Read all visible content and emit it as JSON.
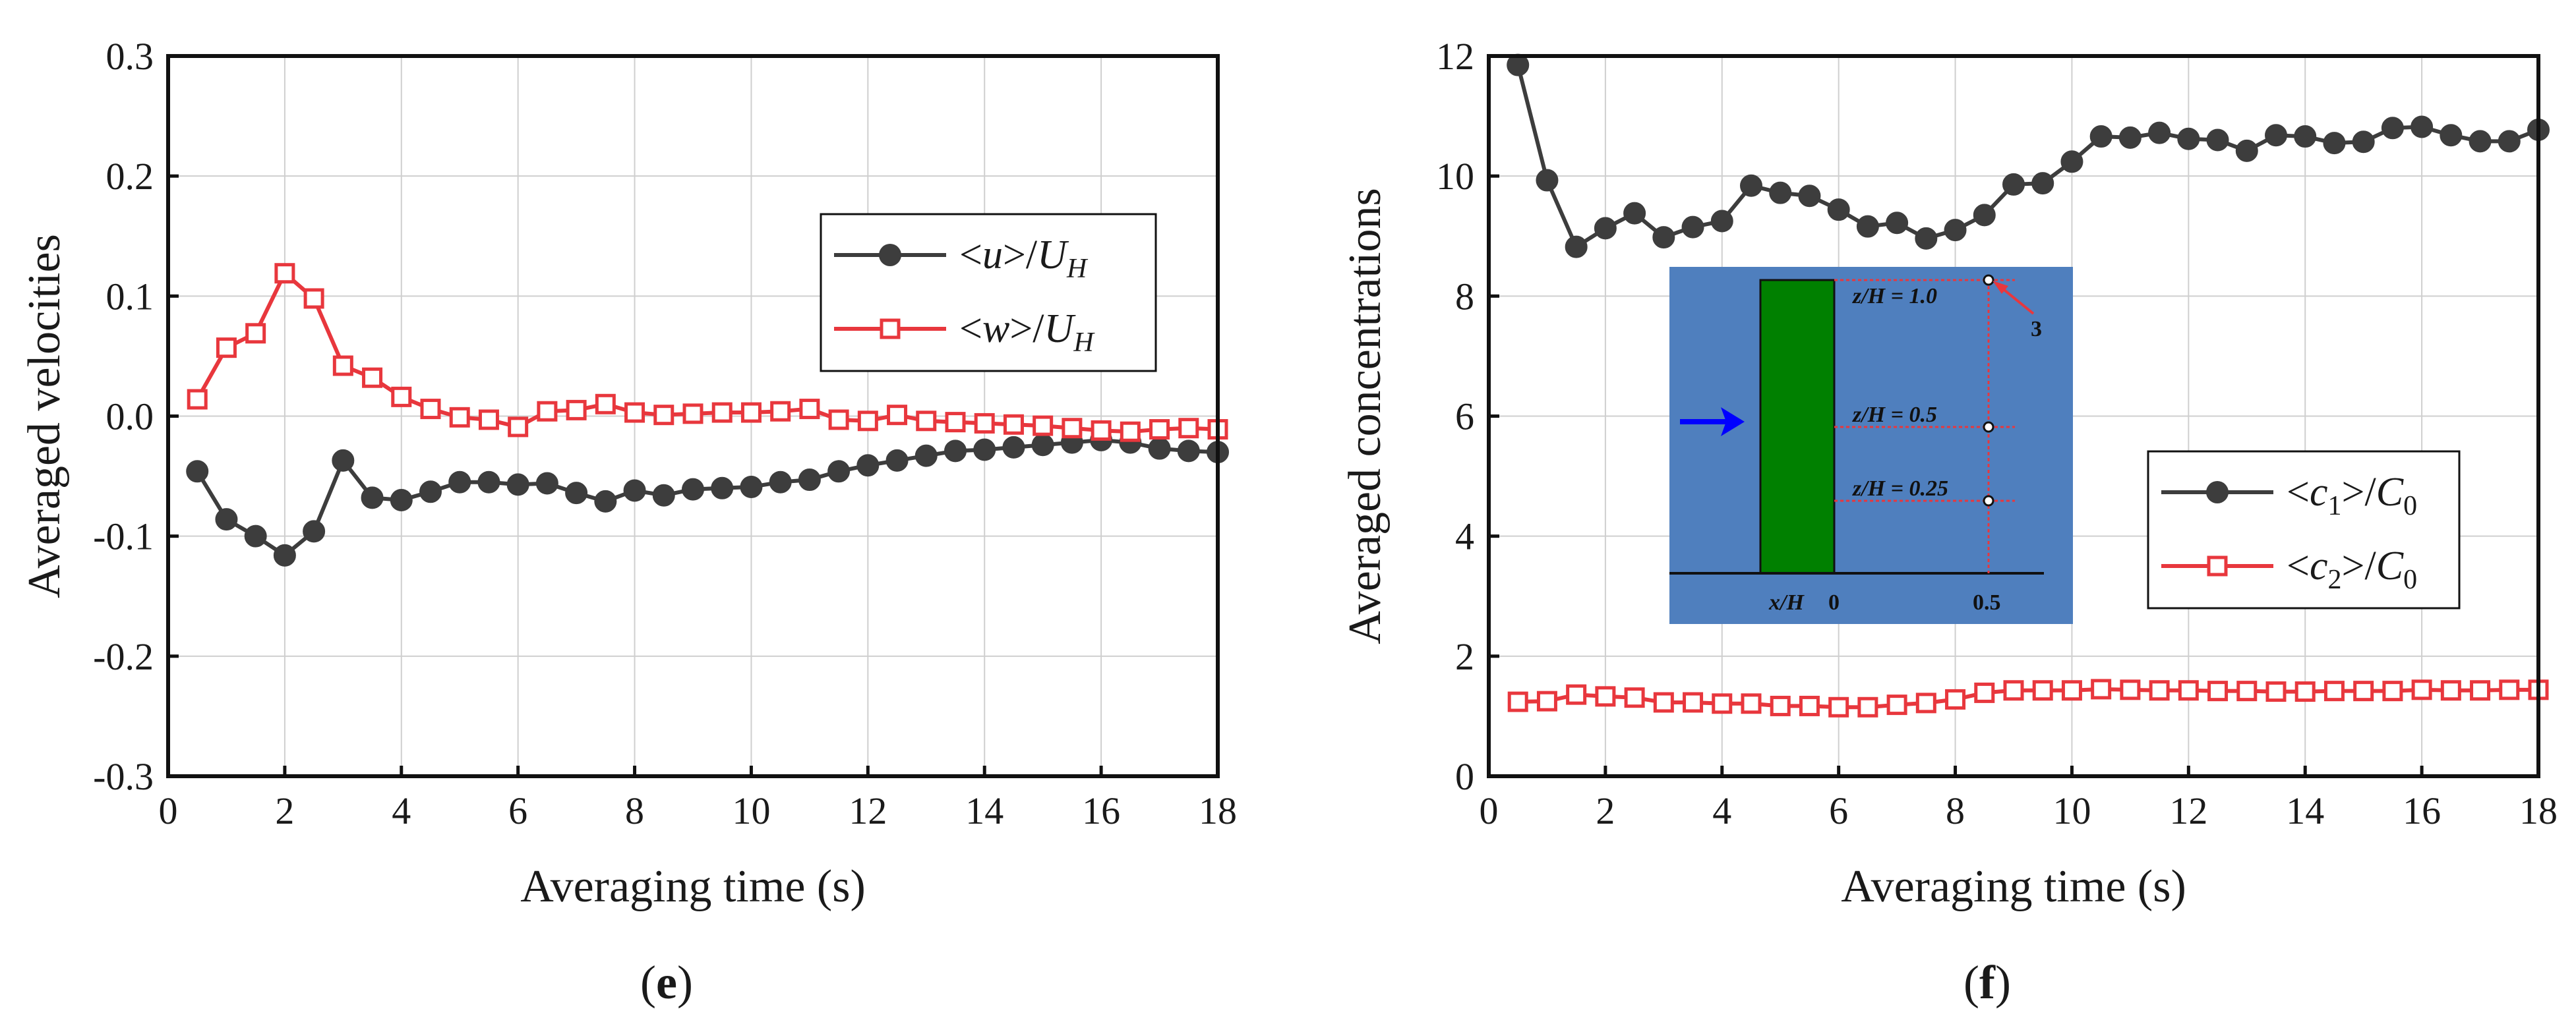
{
  "chart_data": [
    {
      "id": "e",
      "type": "line",
      "panel_label": "(e)",
      "panel_letter": "e",
      "xlabel": "Averaging time (s)",
      "ylabel": "Averaged velocities",
      "xlim": [
        0,
        18
      ],
      "ylim": [
        -0.3,
        0.3
      ],
      "xticks": [
        0,
        2,
        4,
        6,
        8,
        10,
        12,
        14,
        16,
        18
      ],
      "yticks": [
        -0.3,
        -0.2,
        -0.1,
        0.0,
        0.1,
        0.2,
        0.3
      ],
      "ytick_labels": [
        "-0.3",
        "-0.2",
        "-0.1",
        "0.0",
        "0.1",
        "0.2",
        "0.3"
      ],
      "grid": true,
      "legend_position": "center-right",
      "series": [
        {
          "name": "<u>/U_H",
          "legend_parts": [
            "<",
            "u",
            ">/",
            "U",
            "H"
          ],
          "color": "#3d3d3d",
          "marker": "circle",
          "x": [
            0.5,
            1,
            1.5,
            2,
            2.5,
            3,
            3.5,
            4,
            4.5,
            5,
            5.5,
            6,
            6.5,
            7,
            7.5,
            8,
            8.5,
            9,
            9.5,
            10,
            10.5,
            11,
            11.5,
            12,
            12.5,
            13,
            13.5,
            14,
            14.5,
            15,
            15.5,
            16,
            16.5,
            17,
            17.5,
            18
          ],
          "values": [
            -0.046,
            -0.086,
            -0.1,
            -0.116,
            -0.096,
            -0.037,
            -0.068,
            -0.07,
            -0.063,
            -0.055,
            -0.055,
            -0.057,
            -0.056,
            -0.064,
            -0.071,
            -0.062,
            -0.066,
            -0.061,
            -0.06,
            -0.059,
            -0.055,
            -0.053,
            -0.046,
            -0.041,
            -0.037,
            -0.033,
            -0.029,
            -0.028,
            -0.026,
            -0.024,
            -0.022,
            -0.02,
            -0.022,
            -0.027,
            -0.029,
            -0.03
          ]
        },
        {
          "name": "<w>/U_H",
          "legend_parts": [
            "<",
            "w",
            ">/",
            "U",
            "H"
          ],
          "color": "#e8373d",
          "marker": "square",
          "x": [
            0.5,
            1,
            1.5,
            2,
            2.5,
            3,
            3.5,
            4,
            4.5,
            5,
            5.5,
            6,
            6.5,
            7,
            7.5,
            8,
            8.5,
            9,
            9.5,
            10,
            10.5,
            11,
            11.5,
            12,
            12.5,
            13,
            13.5,
            14,
            14.5,
            15,
            15.5,
            16,
            16.5,
            17,
            17.5,
            18
          ],
          "values": [
            0.014,
            0.057,
            0.069,
            0.119,
            0.098,
            0.042,
            0.032,
            0.016,
            0.006,
            -0.001,
            -0.003,
            -0.009,
            0.004,
            0.005,
            0.01,
            0.003,
            0.001,
            0.002,
            0.003,
            0.003,
            0.004,
            0.006,
            -0.003,
            -0.004,
            0.001,
            -0.004,
            -0.005,
            -0.006,
            -0.007,
            -0.008,
            -0.01,
            -0.012,
            -0.013,
            -0.011,
            -0.01,
            -0.011
          ]
        }
      ]
    },
    {
      "id": "f",
      "type": "line",
      "panel_label": "(f)",
      "panel_letter": "f",
      "xlabel": "Averaging time (s)",
      "ylabel": "Averaged concentrations",
      "xlim": [
        0,
        18
      ],
      "ylim": [
        0,
        12
      ],
      "xticks": [
        0,
        2,
        4,
        6,
        8,
        10,
        12,
        14,
        16,
        18
      ],
      "yticks": [
        0,
        2,
        4,
        6,
        8,
        10,
        12
      ],
      "ytick_labels": [
        "0",
        "2",
        "4",
        "6",
        "8",
        "10",
        "12"
      ],
      "grid": true,
      "legend_position": "lower-right",
      "series": [
        {
          "name": "<c1>/C0",
          "legend_parts": [
            "<",
            "c",
            "1",
            ">/",
            "C",
            "0"
          ],
          "color": "#3d3d3d",
          "marker": "circle",
          "x": [
            0.5,
            1,
            1.5,
            2,
            2.5,
            3,
            3.5,
            4,
            4.5,
            5,
            5.5,
            6,
            6.5,
            7,
            7.5,
            8,
            8.5,
            9,
            9.5,
            10,
            10.5,
            11,
            11.5,
            12,
            12.5,
            13,
            13.5,
            14,
            14.5,
            15,
            15.5,
            16,
            16.5,
            17,
            17.5,
            18
          ],
          "values": [
            11.85,
            9.93,
            8.82,
            9.13,
            9.38,
            8.98,
            9.15,
            9.25,
            9.84,
            9.72,
            9.67,
            9.44,
            9.16,
            9.22,
            8.96,
            9.1,
            9.35,
            9.86,
            9.88,
            10.24,
            10.66,
            10.64,
            10.72,
            10.62,
            10.6,
            10.42,
            10.68,
            10.66,
            10.55,
            10.57,
            10.8,
            10.82,
            10.68,
            10.58,
            10.58,
            10.77
          ]
        },
        {
          "name": "<c2>/C0",
          "legend_parts": [
            "<",
            "c",
            "2",
            ">/",
            "C",
            "0"
          ],
          "color": "#e8373d",
          "marker": "square",
          "x": [
            0.5,
            1,
            1.5,
            2,
            2.5,
            3,
            3.5,
            4,
            4.5,
            5,
            5.5,
            6,
            6.5,
            7,
            7.5,
            8,
            8.5,
            9,
            9.5,
            10,
            10.5,
            11,
            11.5,
            12,
            12.5,
            13,
            13.5,
            14,
            14.5,
            15,
            15.5,
            16,
            16.5,
            17,
            17.5,
            18
          ],
          "values": [
            1.24,
            1.25,
            1.36,
            1.33,
            1.31,
            1.23,
            1.23,
            1.21,
            1.21,
            1.17,
            1.17,
            1.15,
            1.15,
            1.19,
            1.22,
            1.28,
            1.39,
            1.43,
            1.43,
            1.43,
            1.45,
            1.44,
            1.43,
            1.43,
            1.42,
            1.42,
            1.41,
            1.41,
            1.42,
            1.42,
            1.42,
            1.44,
            1.43,
            1.43,
            1.44,
            1.44
          ]
        }
      ],
      "inset": {
        "labels": {
          "x_over_h": "x/H",
          "zero": "0",
          "half": "0.5",
          "z_levels": [
            "z/H = 1.0",
            "z/H = 0.5",
            "z/H = 0.25"
          ],
          "point_id": "3"
        },
        "colors": {
          "background": "#4f7fbe",
          "building": "#008000",
          "flow_arrow": "#0000ff",
          "guides": "#e8373d"
        }
      }
    }
  ]
}
